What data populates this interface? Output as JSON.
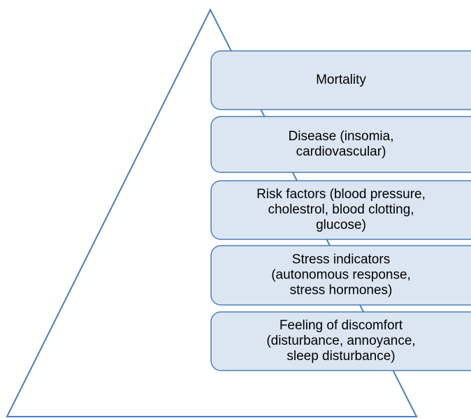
{
  "boxes": [
    {
      "lines": [
        "Mortality"
      ]
    },
    {
      "lines": [
        "Disease (insomia,",
        "cardiovascular)"
      ]
    },
    {
      "lines": [
        "Risk factors (blood pressure,",
        "cholestrol, blood clotting,",
        "glucose)"
      ]
    },
    {
      "lines": [
        "Stress indicators",
        "(autonomous response,",
        "stress hormones)"
      ]
    },
    {
      "lines": [
        "Feeling of discomfort",
        "(disturbance, annoyance,",
        "sleep disturbance)"
      ]
    }
  ]
}
